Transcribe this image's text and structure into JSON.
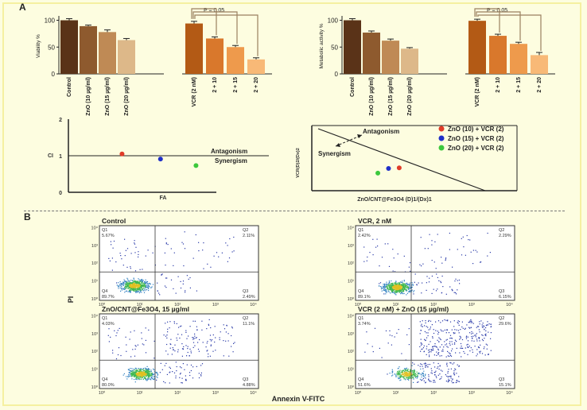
{
  "panel_labels": {
    "a": "A",
    "b": "B"
  },
  "colors": {
    "ctrl": "#5a3318",
    "zno10": "#8e5a2e",
    "zno15": "#bf8a55",
    "zno20": "#ddb889",
    "vcr": "#b35a15",
    "c210": "#d9782c",
    "c215": "#ee9a4c",
    "c220": "#f8b977",
    "red": "#e03c28",
    "blue": "#2030c8",
    "green": "#3cc83c",
    "bracket": "#9a8060"
  },
  "chart_data": [
    {
      "type": "bar",
      "title": "",
      "ylabel": "Viability %",
      "xlabel": "",
      "ylim": [
        0,
        120
      ],
      "yticks": [
        "0",
        "50",
        "100"
      ],
      "categories": [
        "Control",
        "ZnO (10 µg/ml)",
        "ZnO (15 µg/ml)",
        "ZnO (20 µg/ml)",
        "VCR (2 nM)",
        "2 + 10",
        "2 + 15",
        "2 + 20"
      ],
      "values": [
        100,
        89,
        78,
        63,
        94,
        66,
        50,
        27
      ],
      "errors": [
        3,
        2,
        4,
        3,
        4,
        3,
        3,
        3
      ],
      "annotation": "P = 0.05"
    },
    {
      "type": "bar",
      "title": "",
      "ylabel": "Metabolic activity %",
      "xlabel": "",
      "ylim": [
        0,
        120
      ],
      "yticks": [
        "0",
        "50",
        "100"
      ],
      "categories": [
        "Control",
        "ZnO (10 µg/ml)",
        "ZnO (15 µg/ml)",
        "ZnO (20 µg/ml)",
        "VCR (2 nM)",
        "2 + 10",
        "2 + 15",
        "2 + 20"
      ],
      "values": [
        100,
        77,
        62,
        47,
        99,
        71,
        56,
        35
      ],
      "errors": [
        3,
        3,
        3,
        2,
        3,
        3,
        3,
        5
      ],
      "annotation": "P = 0.05"
    },
    {
      "type": "scatter",
      "title": "",
      "xlabel": "FA",
      "ylabel": "CI",
      "ylim": [
        0,
        2
      ],
      "xlim": [
        0,
        1
      ],
      "yticks": [
        "0",
        "1",
        "2"
      ],
      "reference_line": 1,
      "points": [
        {
          "x": 0.47,
          "y": 1.05,
          "color": "red"
        },
        {
          "x": 0.73,
          "y": 0.91,
          "color": "blue"
        },
        {
          "x": 0.97,
          "y": 0.73,
          "color": "green"
        }
      ],
      "annotations": [
        "Antagonism",
        "Synergism"
      ]
    },
    {
      "type": "scatter",
      "title": "",
      "xlabel": "ZnO/CNT@Fe3O4 (D)1/(Dx)1",
      "ylabel": "VCR(D)2/(Dx)2",
      "xlim": [
        0,
        1
      ],
      "ylim": [
        0,
        1
      ],
      "reference_line": "diagonal",
      "points": [
        {
          "x": 0.47,
          "y": 0.3,
          "color": "green"
        },
        {
          "x": 0.57,
          "y": 0.38,
          "color": "blue"
        },
        {
          "x": 0.67,
          "y": 0.39,
          "color": "red"
        }
      ],
      "annotations": [
        "Antagonism",
        "Synergism"
      ],
      "legend": [
        {
          "label": "ZnO (10) + VCR (2)",
          "color": "red"
        },
        {
          "label": "ZnO (15) + VCR (2)",
          "color": "blue"
        },
        {
          "label": "ZnO (20) + VCR (2)",
          "color": "green"
        }
      ],
      "legend_position": "top-right"
    },
    {
      "type": "scatter",
      "title": "",
      "shared_xlabel": "Annexin V-FITC",
      "shared_ylabel": "PI",
      "axis_ticks": [
        "10⁰",
        "10¹",
        "10²",
        "10³",
        "10⁴"
      ],
      "subplots": [
        {
          "title": "Control",
          "q1": "5.67%",
          "q2": "2.11%",
          "q3": "2.49%",
          "q4": "89.7%"
        },
        {
          "title": "VCR, 2 nM",
          "q1": "2.42%",
          "q2": "2.29%",
          "q3": "6.15%",
          "q4": "89.1%"
        },
        {
          "title": "ZnO/CNT@Fe3O4, 15 µg/ml",
          "q1": "4.03%",
          "q2": "11.1%",
          "q3": "4.88%",
          "q4": "80.0%"
        },
        {
          "title": "VCR (2 nM) + ZnO (15 µg/ml)",
          "q1": "3.74%",
          "q2": "29.6%",
          "q3": "15.1%",
          "q4": "51.6%"
        }
      ],
      "quadrant_labels": [
        "Q1",
        "Q2",
        "Q3",
        "Q4"
      ]
    }
  ]
}
